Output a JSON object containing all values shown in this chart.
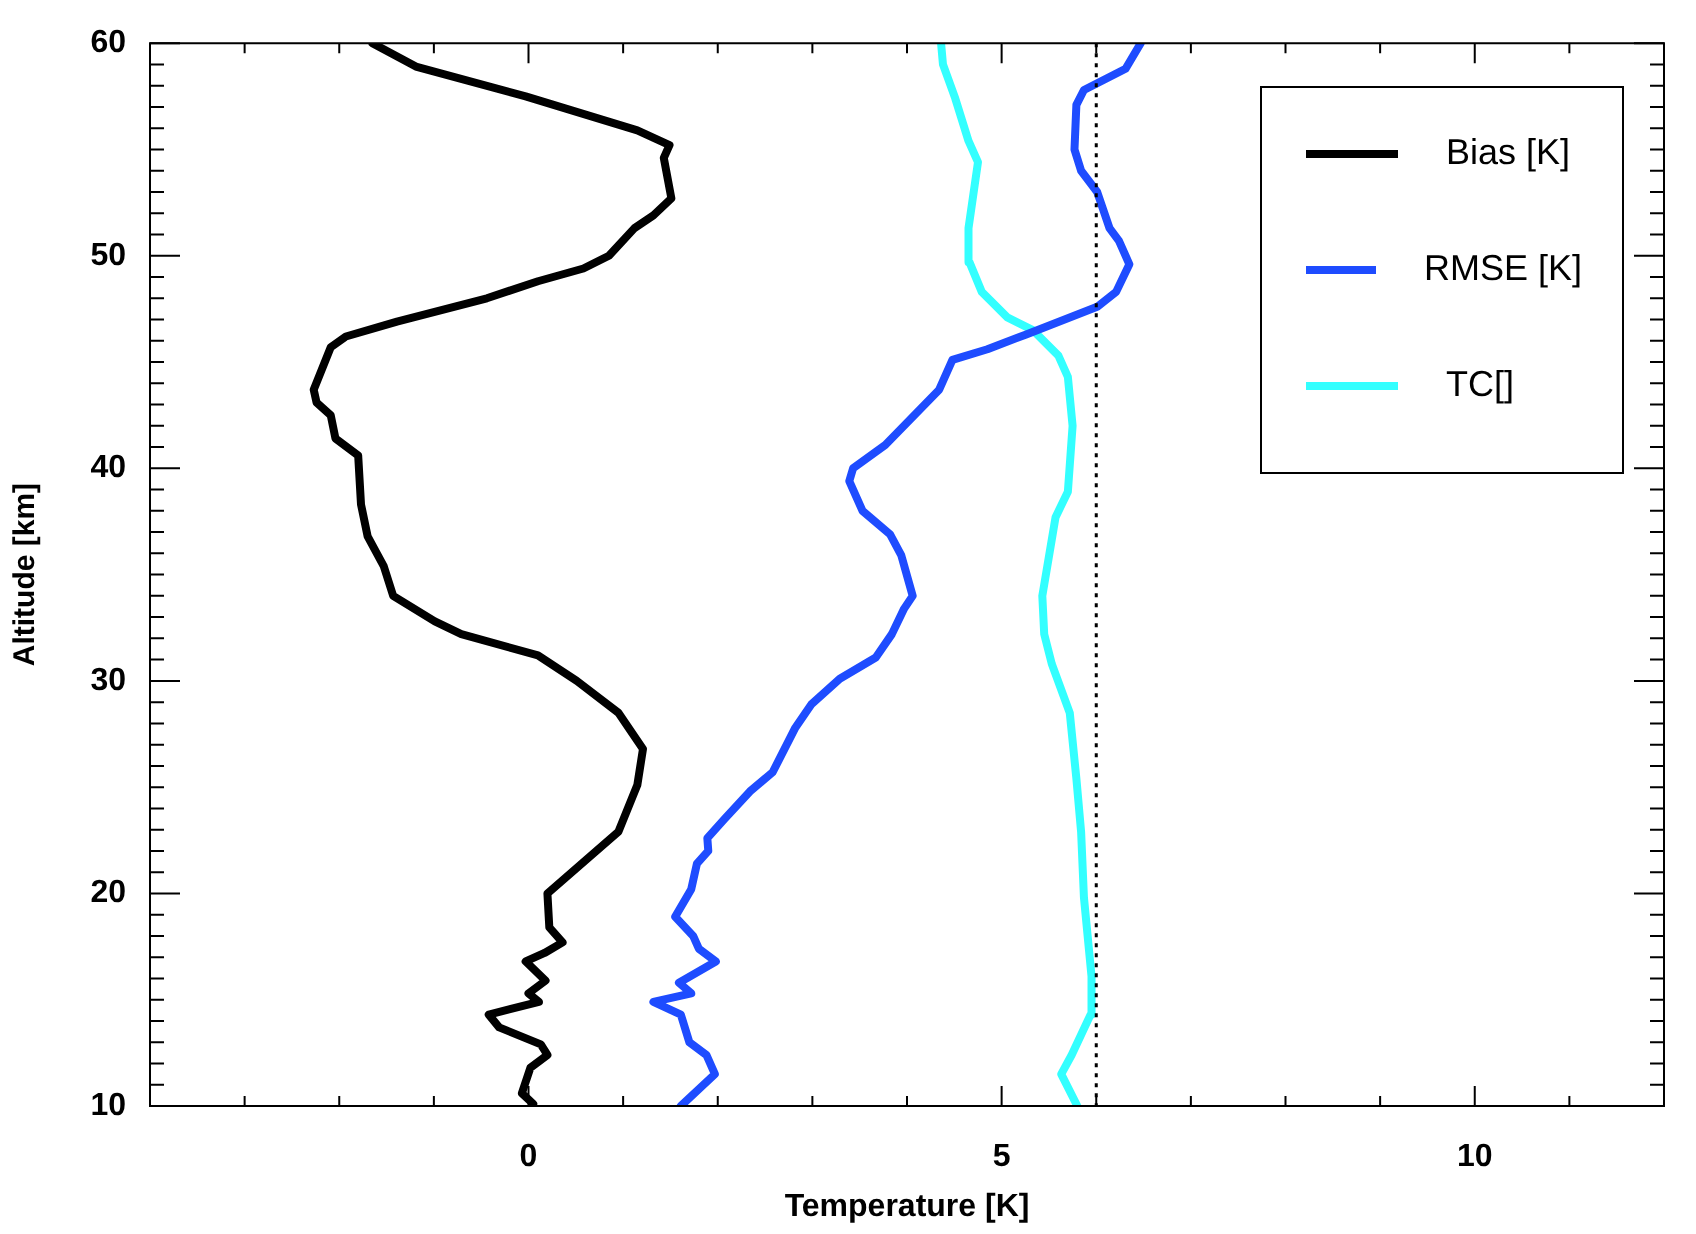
{
  "chart_data": {
    "type": "line",
    "xlabel": "Temperature [K]",
    "ylabel": "Altitude [km]",
    "xlim": [
      -4,
      12
    ],
    "ylim": [
      10,
      60
    ],
    "xticks": [
      {
        "value": -4,
        "label": null
      },
      {
        "value": -3,
        "label": null
      },
      {
        "value": -2,
        "label": null
      },
      {
        "value": -1,
        "label": null
      },
      0,
      {
        "value": 1,
        "label": null
      },
      {
        "value": 2,
        "label": null
      },
      {
        "value": 3,
        "label": null
      },
      {
        "value": 4,
        "label": null
      },
      5,
      {
        "value": 6,
        "label": null
      },
      {
        "value": 7,
        "label": null
      },
      {
        "value": 8,
        "label": null
      },
      {
        "value": 9,
        "label": null
      },
      10,
      {
        "value": 11,
        "label": null
      },
      {
        "value": 12,
        "label": null
      }
    ],
    "yticks": [
      10,
      {
        "value": 11,
        "label": null
      },
      {
        "value": 12,
        "label": null
      },
      {
        "value": 13,
        "label": null
      },
      {
        "value": 14,
        "label": null
      },
      {
        "value": 15,
        "label": null
      },
      {
        "value": 16,
        "label": null
      },
      {
        "value": 17,
        "label": null
      },
      {
        "value": 18,
        "label": null
      },
      {
        "value": 19,
        "label": null
      },
      20,
      {
        "value": 21,
        "label": null
      },
      {
        "value": 22,
        "label": null
      },
      {
        "value": 23,
        "label": null
      },
      {
        "value": 24,
        "label": null
      },
      {
        "value": 25,
        "label": null
      },
      {
        "value": 26,
        "label": null
      },
      {
        "value": 27,
        "label": null
      },
      {
        "value": 28,
        "label": null
      },
      {
        "value": 29,
        "label": null
      },
      30,
      {
        "value": 31,
        "label": null
      },
      {
        "value": 32,
        "label": null
      },
      {
        "value": 33,
        "label": null
      },
      {
        "value": 34,
        "label": null
      },
      {
        "value": 35,
        "label": null
      },
      {
        "value": 36,
        "label": null
      },
      {
        "value": 37,
        "label": null
      },
      {
        "value": 38,
        "label": null
      },
      {
        "value": 39,
        "label": null
      },
      40,
      {
        "value": 41,
        "label": null
      },
      {
        "value": 42,
        "label": null
      },
      {
        "value": 43,
        "label": null
      },
      {
        "value": 44,
        "label": null
      },
      {
        "value": 45,
        "label": null
      },
      {
        "value": 46,
        "label": null
      },
      {
        "value": 47,
        "label": null
      },
      {
        "value": 48,
        "label": null
      },
      {
        "value": 49,
        "label": null
      },
      50,
      {
        "value": 51,
        "label": null
      },
      {
        "value": 52,
        "label": null
      },
      {
        "value": 53,
        "label": null
      },
      {
        "value": 54,
        "label": null
      },
      {
        "value": 55,
        "label": null
      },
      {
        "value": 56,
        "label": null
      },
      {
        "value": 57,
        "label": null
      },
      {
        "value": 58,
        "label": null
      },
      {
        "value": 59,
        "label": null
      },
      60
    ],
    "grid": false,
    "legend": "top right",
    "marker": "none",
    "line_style": "solid",
    "ref_lines": [
      {
        "axis": "x",
        "value": 6,
        "color": "#000000",
        "line_style": "dotted"
      }
    ],
    "series": [
      {
        "name": "Bias [K]",
        "color": "#000000",
        "x": [
          0.05,
          -0.07,
          0.02,
          0.2,
          0.13,
          -0.31,
          -0.42,
          0.11,
          0.0,
          0.18,
          -0.03,
          0.17,
          0.36,
          0.22,
          0.2,
          0.64,
          0.95,
          1.15,
          1.21,
          0.95,
          0.51,
          0.1,
          -0.71,
          -0.99,
          -1.43,
          -1.53,
          -1.7,
          -1.77,
          -1.8,
          -2.04,
          -2.09,
          -2.24,
          -2.27,
          -2.09,
          -1.93,
          -1.39,
          -0.44,
          0.1,
          0.58,
          0.85,
          1.12,
          1.32,
          1.51,
          1.43,
          1.49,
          1.15,
          -0.03,
          -1.19,
          -1.65
        ],
        "values": [
          10.1,
          10.6,
          11.8,
          12.4,
          12.9,
          13.7,
          14.3,
          14.9,
          15.3,
          15.9,
          16.8,
          17.2,
          17.7,
          18.4,
          20.0,
          21.7,
          22.9,
          25.1,
          26.8,
          28.5,
          30.0,
          31.2,
          32.2,
          32.8,
          34.0,
          35.4,
          36.8,
          38.3,
          40.6,
          41.4,
          42.5,
          43.1,
          43.7,
          45.7,
          46.2,
          46.9,
          48.0,
          48.8,
          49.4,
          50.0,
          51.3,
          51.9,
          52.7,
          54.6,
          55.2,
          55.9,
          57.5,
          58.9,
          60
        ]
      },
      {
        "name": "RMSE [K]",
        "color": "#1e4cff",
        "x": [
          1.61,
          1.97,
          1.88,
          1.7,
          1.61,
          1.32,
          1.72,
          1.59,
          1.98,
          1.8,
          1.74,
          1.55,
          1.72,
          1.78,
          1.9,
          1.89,
          2.07,
          2.34,
          2.58,
          2.82,
          2.99,
          3.29,
          3.67,
          3.84,
          3.97,
          4.06,
          3.94,
          3.82,
          3.53,
          3.39,
          3.43,
          3.77,
          4.34,
          4.48,
          4.85,
          5.26,
          6.01,
          6.21,
          6.35,
          6.24,
          6.14,
          6.01,
          5.84,
          5.77,
          5.79,
          5.87,
          6.31,
          6.47
        ],
        "values": [
          10,
          11.5,
          12.4,
          13.0,
          14.3,
          14.9,
          15.3,
          15.8,
          16.8,
          17.4,
          18.0,
          18.9,
          20.2,
          21.4,
          22.0,
          22.6,
          23.5,
          24.8,
          25.7,
          27.8,
          28.9,
          30.1,
          31.1,
          32.2,
          33.4,
          34.0,
          35.9,
          36.9,
          38.0,
          39.4,
          40.0,
          41.1,
          43.7,
          45.1,
          45.6,
          46.3,
          47.6,
          48.3,
          49.6,
          50.7,
          51.3,
          53.0,
          54.0,
          55.0,
          57.1,
          57.8,
          58.8,
          60
        ]
      },
      {
        "name": "TC[]",
        "color": "#33ffff",
        "x": [
          5.8,
          5.63,
          5.74,
          5.94,
          5.95,
          5.87,
          5.84,
          5.79,
          5.72,
          5.53,
          5.45,
          5.43,
          5.57,
          5.7,
          5.75,
          5.7,
          5.6,
          5.33,
          5.06,
          4.79,
          4.66,
          4.65,
          4.75,
          4.65,
          4.51,
          4.38,
          4.36
        ],
        "values": [
          10,
          11.5,
          12.4,
          14.3,
          16.1,
          19.8,
          22.9,
          25.4,
          28.5,
          30.8,
          32.2,
          34.0,
          37.7,
          38.9,
          42.0,
          44.3,
          45.3,
          46.5,
          47.1,
          48.3,
          49.7,
          51.3,
          54.4,
          55.4,
          57.4,
          59.0,
          60
        ]
      }
    ]
  }
}
